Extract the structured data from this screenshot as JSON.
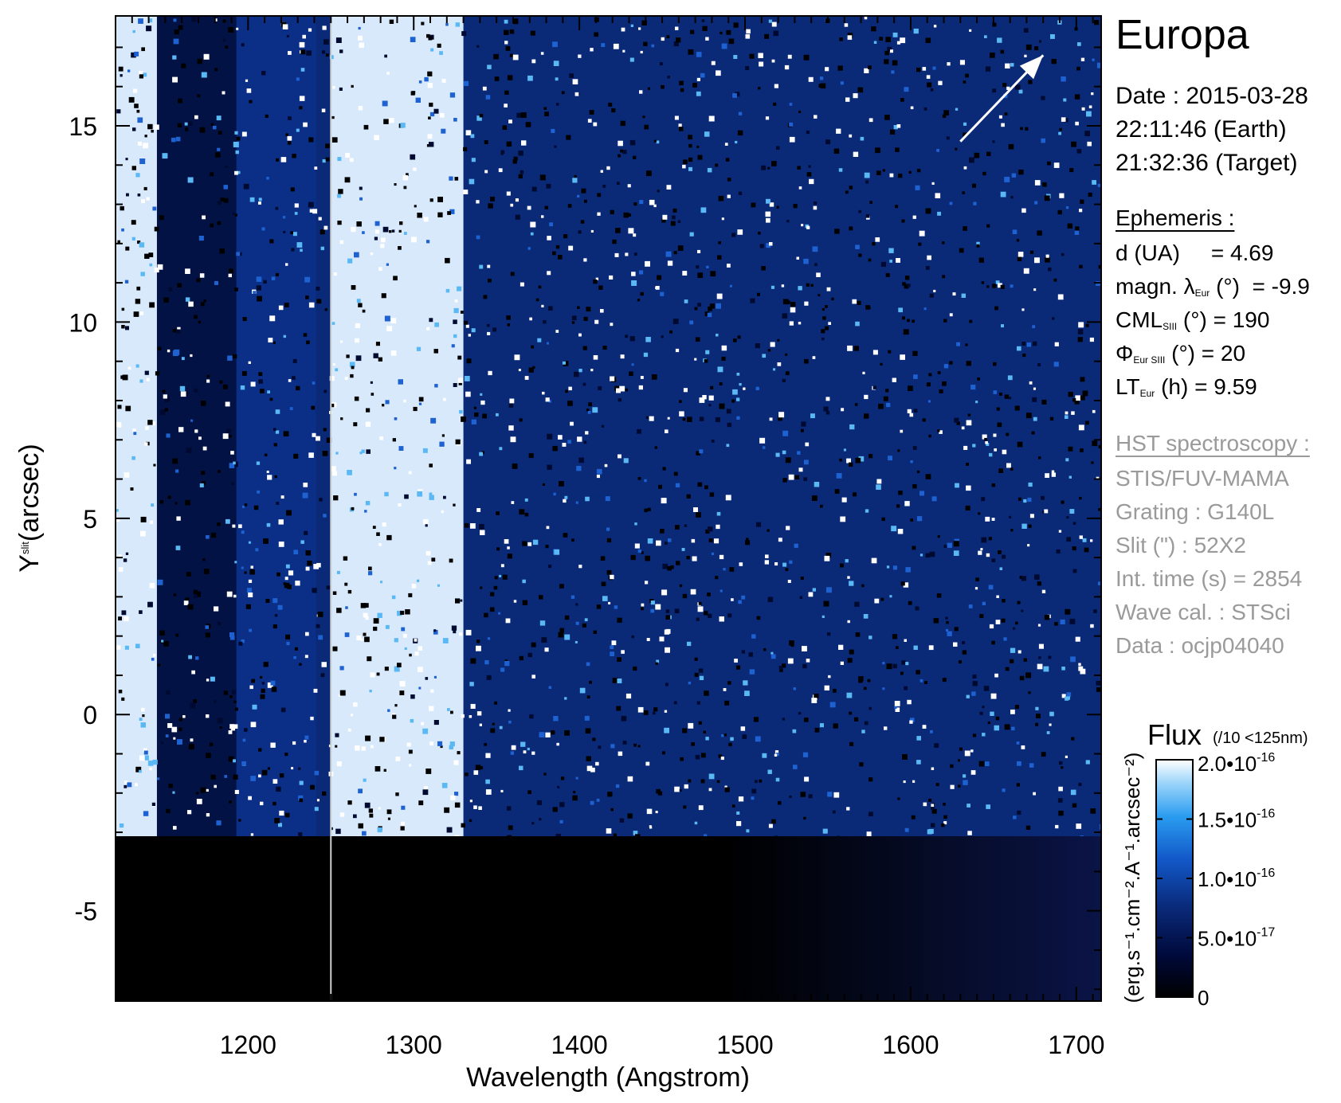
{
  "title": "Europa",
  "date_lines": [
    "Date : 2015-03-28",
    "22:11:46 (Earth)",
    "21:32:36 (Target)"
  ],
  "ephemeris": {
    "header": "Ephemeris :",
    "d": {
      "pre": "d (UA)",
      "sub": "",
      "post": "",
      "value": "= 4.69"
    },
    "magn": {
      "pre": "magn. λ",
      "sub": "Eur",
      "post": "(°)",
      "value": "= -9.9"
    },
    "cml": {
      "pre": "CML",
      "sub": "SIII",
      "post": "(°)",
      "value": "= 190"
    },
    "phi": {
      "pre": "Φ",
      "sub": "Eur SIII",
      "post": "(°)",
      "value": "= 20"
    },
    "lt": {
      "pre": "LT",
      "sub": "Eur",
      "post": "(h)",
      "value": "= 9.59"
    }
  },
  "hst": {
    "header": "HST spectroscopy :",
    "lines": [
      "STIS/FUV-MAMA",
      "Grating : G140L",
      "Slit (\") : 52X2",
      "Int. time (s) = 2854",
      "Wave cal. : STSci",
      "Data : ocjp04040"
    ]
  },
  "chart_data": {
    "type": "heatmap",
    "xlabel": "Wavelength (Angstrom)",
    "ylabel": {
      "main": "Y",
      "sub": "slit",
      "unit": "(arcsec)"
    },
    "xlim": [
      1120,
      1715
    ],
    "ylim": [
      -7.3,
      17.8
    ],
    "x_ticks": [
      1200,
      1300,
      1400,
      1500,
      1600,
      1700
    ],
    "x_tick_labels": [
      "1200",
      "1300",
      "1400",
      "1500",
      "1600",
      "1700"
    ],
    "y_ticks": [
      -5,
      0,
      5,
      10,
      15
    ],
    "y_tick_labels": [
      "-5",
      "0",
      "5",
      "10",
      "15"
    ],
    "slit_bottom_y": -3.1,
    "geocoronal_lines": [
      {
        "x_from": 1120,
        "x_to": 1145,
        "level": "bright"
      },
      {
        "x_from": 1145,
        "x_to": 1193,
        "level": "dark"
      },
      {
        "x_from": 1193,
        "x_to": 1241,
        "level": "medium"
      },
      {
        "x_from": 1250,
        "x_to": 1330,
        "level": "bright"
      }
    ],
    "divider_x": 1250,
    "colorbar": {
      "title": "Flux",
      "note": "(/10 <125nm)",
      "unit_label": "(erg.s⁻¹.cm⁻².A⁻¹.arcsec⁻²)",
      "min": 0,
      "max": 2e-16,
      "ticks": [
        {
          "value": 2e-16,
          "mant": "2.0•10",
          "exp": "-16"
        },
        {
          "value": 1.5e-16,
          "mant": "1.5•10",
          "exp": "-16"
        },
        {
          "value": 1e-16,
          "mant": "1.0•10",
          "exp": "-16"
        },
        {
          "value": 5e-17,
          "mant": "5.0•10",
          "exp": "-17"
        },
        {
          "value": 0,
          "mant": "0",
          "exp": ""
        }
      ],
      "colors": [
        "#000000",
        "#000a3c",
        "#0a2a7a",
        "#1258c8",
        "#2a9cf0",
        "#9ad4fa",
        "#ffffff"
      ]
    },
    "arrow": {
      "from": [
        1630,
        14.6
      ],
      "to": [
        1680,
        16.8
      ]
    }
  }
}
